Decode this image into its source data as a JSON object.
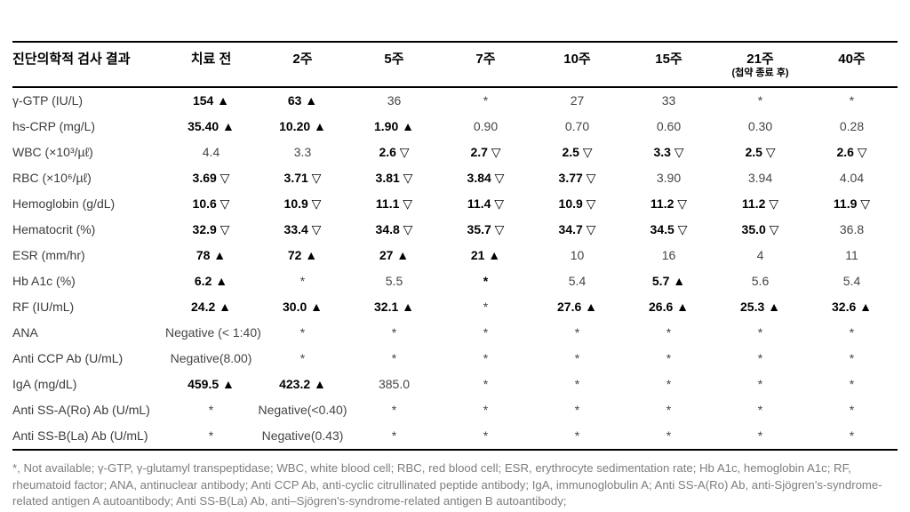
{
  "colors": {
    "rule": "#000000",
    "bold_value": "#000000",
    "normal_value": "#454545",
    "footnote_text": "#7d7d7d"
  },
  "markers": {
    "up_filled_triangle": "▲",
    "down_open_triangle": "▽",
    "not_available": "*"
  },
  "table": {
    "columns": [
      {
        "label": "진단의학적 검사 결과"
      },
      {
        "label": "치료 전"
      },
      {
        "label": "2주"
      },
      {
        "label": "5주"
      },
      {
        "label": "7주"
      },
      {
        "label": "10주"
      },
      {
        "label": "15주"
      },
      {
        "label": "21주",
        "sub": "(첩약 종료 후)"
      },
      {
        "label": "40주"
      }
    ],
    "rows": [
      {
        "label": "γ-GTP (IU/L)",
        "cells": [
          {
            "v": "154 ▲",
            "bold": true
          },
          {
            "v": "63 ▲",
            "bold": true
          },
          {
            "v": "36",
            "bold": false
          },
          {
            "v": "*",
            "bold": false
          },
          {
            "v": "27",
            "bold": false
          },
          {
            "v": "33",
            "bold": false
          },
          {
            "v": "*",
            "bold": false
          },
          {
            "v": "*",
            "bold": false
          }
        ]
      },
      {
        "label": "hs-CRP (mg/L)",
        "cells": [
          {
            "v": "35.40 ▲",
            "bold": true
          },
          {
            "v": "10.20 ▲",
            "bold": true
          },
          {
            "v": "1.90 ▲",
            "bold": true
          },
          {
            "v": "0.90",
            "bold": false
          },
          {
            "v": "0.70",
            "bold": false
          },
          {
            "v": "0.60",
            "bold": false
          },
          {
            "v": "0.30",
            "bold": false
          },
          {
            "v": "0.28",
            "bold": false
          }
        ]
      },
      {
        "label": "WBC (×10³/µℓ)",
        "cells": [
          {
            "v": "4.4",
            "bold": false
          },
          {
            "v": "3.3",
            "bold": false
          },
          {
            "v": "2.6 ▽",
            "bold": true
          },
          {
            "v": "2.7 ▽",
            "bold": true
          },
          {
            "v": "2.5 ▽",
            "bold": true
          },
          {
            "v": "3.3 ▽",
            "bold": true
          },
          {
            "v": "2.5 ▽",
            "bold": true
          },
          {
            "v": "2.6 ▽",
            "bold": true
          }
        ]
      },
      {
        "label": "RBC (×10⁶/µℓ)",
        "cells": [
          {
            "v": "3.69 ▽",
            "bold": true
          },
          {
            "v": "3.71 ▽",
            "bold": true
          },
          {
            "v": "3.81 ▽",
            "bold": true
          },
          {
            "v": "3.84 ▽",
            "bold": true
          },
          {
            "v": "3.77 ▽",
            "bold": true
          },
          {
            "v": "3.90",
            "bold": false
          },
          {
            "v": "3.94",
            "bold": false
          },
          {
            "v": "4.04",
            "bold": false
          }
        ]
      },
      {
        "label": "Hemoglobin (g/dL)",
        "cells": [
          {
            "v": "10.6 ▽",
            "bold": true
          },
          {
            "v": "10.9 ▽",
            "bold": true
          },
          {
            "v": "11.1 ▽",
            "bold": true
          },
          {
            "v": "11.4 ▽",
            "bold": true
          },
          {
            "v": "10.9 ▽",
            "bold": true
          },
          {
            "v": "11.2 ▽",
            "bold": true
          },
          {
            "v": "11.2 ▽",
            "bold": true
          },
          {
            "v": "11.9 ▽",
            "bold": true
          }
        ]
      },
      {
        "label": "Hematocrit (%)",
        "cells": [
          {
            "v": "32.9 ▽",
            "bold": true
          },
          {
            "v": "33.4 ▽",
            "bold": true
          },
          {
            "v": "34.8 ▽",
            "bold": true
          },
          {
            "v": "35.7 ▽",
            "bold": true
          },
          {
            "v": "34.7 ▽",
            "bold": true
          },
          {
            "v": "34.5 ▽",
            "bold": true
          },
          {
            "v": "35.0 ▽",
            "bold": true
          },
          {
            "v": "36.8",
            "bold": false
          }
        ]
      },
      {
        "label": "ESR (mm/hr)",
        "cells": [
          {
            "v": "78 ▲",
            "bold": true
          },
          {
            "v": "72 ▲",
            "bold": true
          },
          {
            "v": "27 ▲",
            "bold": true
          },
          {
            "v": "21 ▲",
            "bold": true
          },
          {
            "v": "10",
            "bold": false
          },
          {
            "v": "16",
            "bold": false
          },
          {
            "v": "4",
            "bold": false
          },
          {
            "v": "11",
            "bold": false
          }
        ]
      },
      {
        "label": "Hb A1c (%)",
        "cells": [
          {
            "v": "6.2 ▲",
            "bold": true
          },
          {
            "v": "*",
            "bold": false
          },
          {
            "v": "5.5",
            "bold": false
          },
          {
            "v": "*",
            "bold": true
          },
          {
            "v": "5.4",
            "bold": false
          },
          {
            "v": "5.7 ▲",
            "bold": true
          },
          {
            "v": "5.6",
            "bold": false
          },
          {
            "v": "5.4",
            "bold": false
          }
        ]
      },
      {
        "label": "RF (IU/mL)",
        "cells": [
          {
            "v": "24.2 ▲",
            "bold": true
          },
          {
            "v": "30.0 ▲",
            "bold": true
          },
          {
            "v": "32.1 ▲",
            "bold": true
          },
          {
            "v": "*",
            "bold": false
          },
          {
            "v": "27.6 ▲",
            "bold": true
          },
          {
            "v": "26.6 ▲",
            "bold": true
          },
          {
            "v": "25.3 ▲",
            "bold": true
          },
          {
            "v": "32.6 ▲",
            "bold": true
          }
        ]
      },
      {
        "label": "ANA",
        "cells": [
          {
            "v": "Negative (< 1:40)",
            "bold": false
          },
          {
            "v": "*",
            "bold": false
          },
          {
            "v": "*",
            "bold": false
          },
          {
            "v": "*",
            "bold": false
          },
          {
            "v": "*",
            "bold": false
          },
          {
            "v": "*",
            "bold": false
          },
          {
            "v": "*",
            "bold": false
          },
          {
            "v": "*",
            "bold": false
          }
        ]
      },
      {
        "label": "Anti CCP Ab (U/mL)",
        "cells": [
          {
            "v": "Negative(8.00)",
            "bold": false
          },
          {
            "v": "*",
            "bold": false
          },
          {
            "v": "*",
            "bold": false
          },
          {
            "v": "*",
            "bold": false
          },
          {
            "v": "*",
            "bold": false
          },
          {
            "v": "*",
            "bold": false
          },
          {
            "v": "*",
            "bold": false
          },
          {
            "v": "*",
            "bold": false
          }
        ]
      },
      {
        "label": "IgA (mg/dL)",
        "cells": [
          {
            "v": "459.5 ▲",
            "bold": true
          },
          {
            "v": "423.2 ▲",
            "bold": true
          },
          {
            "v": "385.0",
            "bold": false
          },
          {
            "v": "*",
            "bold": false
          },
          {
            "v": "*",
            "bold": false
          },
          {
            "v": "*",
            "bold": false
          },
          {
            "v": "*",
            "bold": false
          },
          {
            "v": "*",
            "bold": false
          }
        ]
      },
      {
        "label": "Anti SS-A(Ro) Ab (U/mL)",
        "cells": [
          {
            "v": "*",
            "bold": false
          },
          {
            "v": "Negative(<0.40)",
            "bold": false
          },
          {
            "v": "*",
            "bold": false
          },
          {
            "v": "*",
            "bold": false
          },
          {
            "v": "*",
            "bold": false
          },
          {
            "v": "*",
            "bold": false
          },
          {
            "v": "*",
            "bold": false
          },
          {
            "v": "*",
            "bold": false
          }
        ]
      },
      {
        "label": "Anti SS-B(La) Ab (U/mL)",
        "cells": [
          {
            "v": "*",
            "bold": false
          },
          {
            "v": "Negative(0.43)",
            "bold": false
          },
          {
            "v": "*",
            "bold": false
          },
          {
            "v": "*",
            "bold": false
          },
          {
            "v": "*",
            "bold": false
          },
          {
            "v": "*",
            "bold": false
          },
          {
            "v": "*",
            "bold": false
          },
          {
            "v": "*",
            "bold": false
          }
        ]
      }
    ]
  },
  "footnote": "*, Not available; γ-GTP, γ-glutamyl transpeptidase; WBC, white blood cell; RBC, red blood cell; ESR, erythrocyte sedimentation rate; Hb A1c, hemoglobin A1c; RF, rheumatoid factor; ANA, antinuclear antibody; Anti CCP Ab, anti-cyclic citrullinated peptide antibody; IgA, immunoglobulin A; Anti SS-A(Ro) Ab, anti-Sjögren's-syndrome-related antigen A autoantibody; Anti SS-B(La) Ab, anti–Sjögren's-syndrome-related antigen B autoantibody;"
}
